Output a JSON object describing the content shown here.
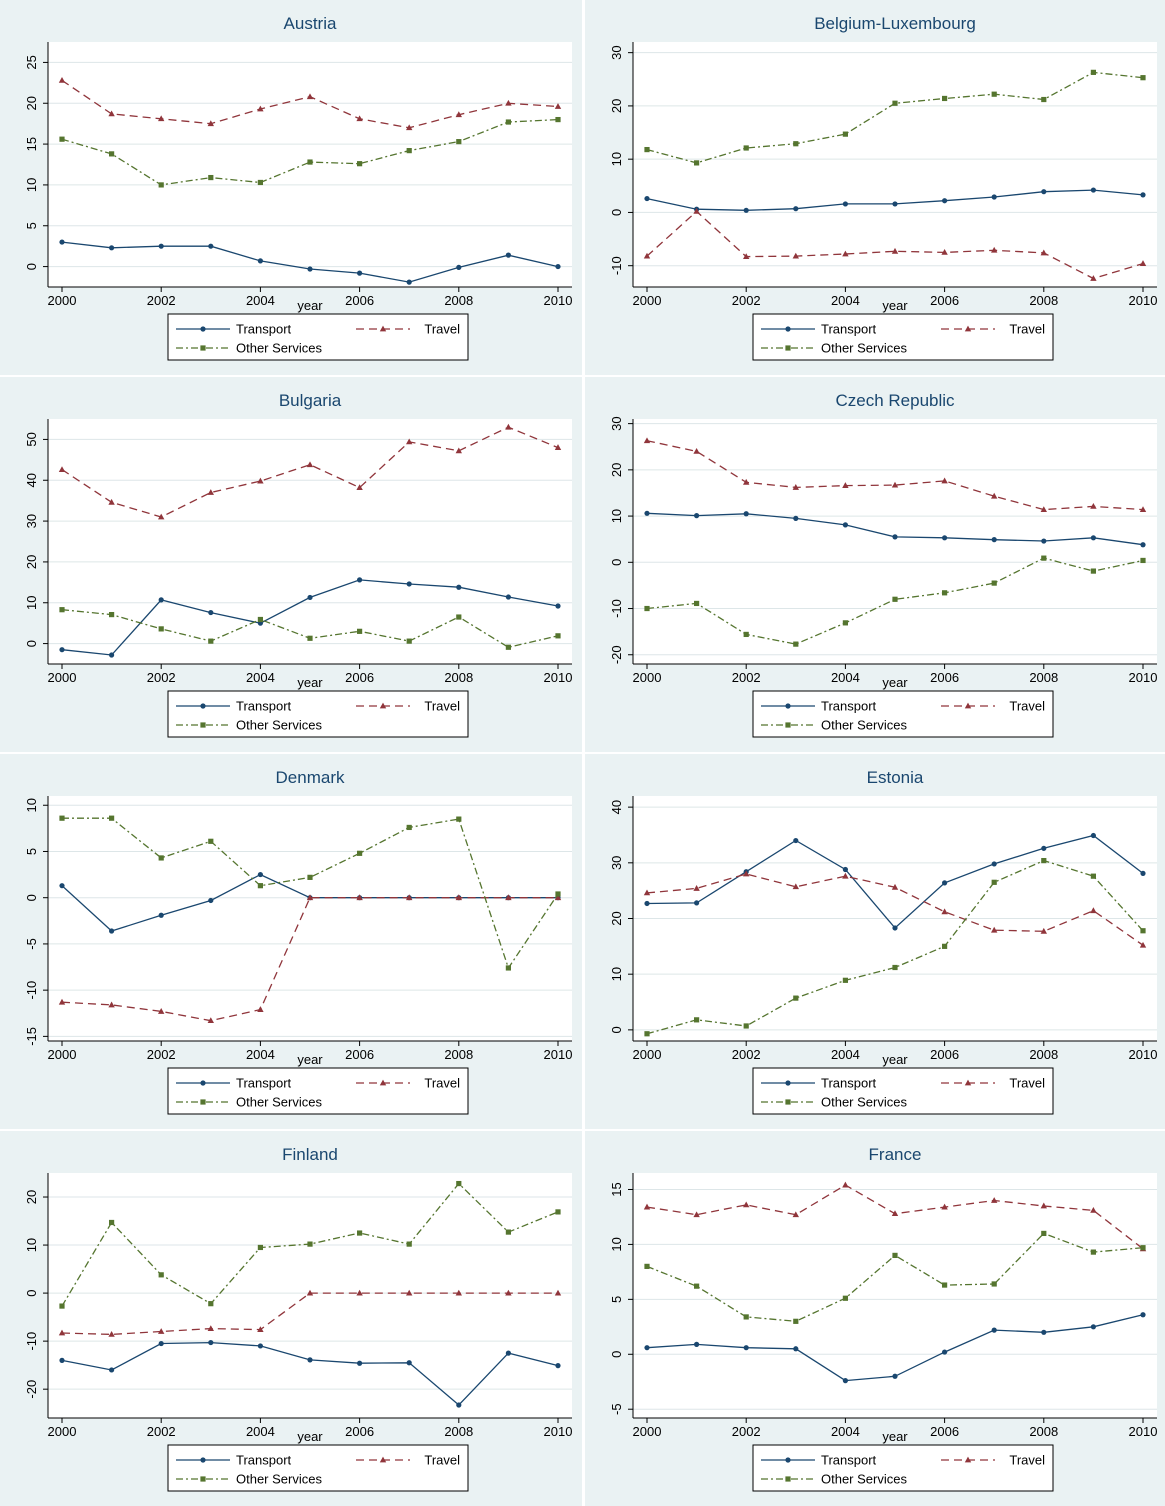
{
  "colors": {
    "panel_bg": "#eaf2f3",
    "plot_bg": "#ffffff",
    "title": "#1a476f",
    "transport": "#1a476f",
    "travel": "#90353b",
    "other_services": "#55752f",
    "grid": "#dde6e8",
    "axis": "#000000"
  },
  "chart_data": [
    {
      "type": "line",
      "title": "Austria",
      "xlabel": "year",
      "ylabel": "",
      "x": [
        2000,
        2001,
        2002,
        2003,
        2004,
        2005,
        2006,
        2007,
        2008,
        2009,
        2010
      ],
      "xticks": [
        "2000",
        "2002",
        "2004",
        "2006",
        "2008",
        "2010"
      ],
      "yticks": [
        0,
        5,
        10,
        15,
        20,
        25
      ],
      "ylim": [
        -2.5,
        27.5
      ],
      "grid": true,
      "legend_position": "bottom",
      "series": [
        {
          "name": "Transport",
          "style": "solid",
          "marker": "circle",
          "values": [
            3.0,
            2.3,
            2.5,
            2.5,
            0.7,
            -0.3,
            -0.8,
            -1.9,
            -0.1,
            1.4,
            0.0
          ]
        },
        {
          "name": "Travel",
          "style": "dash",
          "marker": "triangle",
          "values": [
            22.8,
            18.7,
            18.1,
            17.5,
            19.3,
            20.8,
            18.1,
            17.0,
            18.6,
            20.0,
            19.6
          ]
        },
        {
          "name": "Other Services",
          "style": "dashdot",
          "marker": "square",
          "values": [
            15.6,
            13.8,
            10.0,
            10.9,
            10.3,
            12.8,
            12.6,
            14.2,
            15.3,
            17.7,
            18.0
          ]
        }
      ]
    },
    {
      "type": "line",
      "title": "Belgium-Luxembourg",
      "xlabel": "year",
      "ylabel": "",
      "x": [
        2000,
        2001,
        2002,
        2003,
        2004,
        2005,
        2006,
        2007,
        2008,
        2009,
        2010
      ],
      "xticks": [
        "2000",
        "2002",
        "2004",
        "2006",
        "2008",
        "2010"
      ],
      "yticks": [
        -10,
        0,
        10,
        20,
        30
      ],
      "ylim": [
        -14,
        32
      ],
      "grid": true,
      "legend_position": "bottom",
      "series": [
        {
          "name": "Transport",
          "style": "solid",
          "marker": "circle",
          "values": [
            2.6,
            0.6,
            0.4,
            0.7,
            1.6,
            1.6,
            2.2,
            2.9,
            3.9,
            4.2,
            3.3
          ]
        },
        {
          "name": "Travel",
          "style": "dash",
          "marker": "triangle",
          "values": [
            -8.2,
            0.2,
            -8.3,
            -8.2,
            -7.8,
            -7.3,
            -7.5,
            -7.1,
            -7.6,
            -12.4,
            -9.6
          ]
        },
        {
          "name": "Other Services",
          "style": "dashdot",
          "marker": "square",
          "values": [
            11.8,
            9.3,
            12.1,
            12.9,
            14.7,
            20.5,
            21.4,
            22.2,
            21.2,
            26.3,
            25.3
          ]
        }
      ]
    },
    {
      "type": "line",
      "title": "Bulgaria",
      "xlabel": "year",
      "ylabel": "",
      "x": [
        2000,
        2001,
        2002,
        2003,
        2004,
        2005,
        2006,
        2007,
        2008,
        2009,
        2010
      ],
      "xticks": [
        "2000",
        "2002",
        "2004",
        "2006",
        "2008",
        "2010"
      ],
      "yticks": [
        0,
        10,
        20,
        30,
        40,
        50
      ],
      "ylim": [
        -5,
        55
      ],
      "grid": true,
      "legend_position": "bottom",
      "series": [
        {
          "name": "Transport",
          "style": "solid",
          "marker": "circle",
          "values": [
            -1.5,
            -2.8,
            10.7,
            7.6,
            5.0,
            11.3,
            15.6,
            14.6,
            13.8,
            11.4,
            9.2
          ]
        },
        {
          "name": "Travel",
          "style": "dash",
          "marker": "triangle",
          "values": [
            42.6,
            34.6,
            31.0,
            37.0,
            39.8,
            43.8,
            38.2,
            49.4,
            47.2,
            53.0,
            48.0
          ]
        },
        {
          "name": "Other Services",
          "style": "dashdot",
          "marker": "square",
          "values": [
            8.3,
            7.1,
            3.6,
            0.6,
            5.9,
            1.3,
            3.0,
            0.6,
            6.5,
            -0.9,
            1.9
          ]
        }
      ]
    },
    {
      "type": "line",
      "title": "Czech Republic",
      "xlabel": "year",
      "ylabel": "",
      "x": [
        2000,
        2001,
        2002,
        2003,
        2004,
        2005,
        2006,
        2007,
        2008,
        2009,
        2010
      ],
      "xticks": [
        "2000",
        "2002",
        "2004",
        "2006",
        "2008",
        "2010"
      ],
      "yticks": [
        -20,
        -10,
        0,
        10,
        20,
        30
      ],
      "ylim": [
        -22,
        31
      ],
      "grid": true,
      "legend_position": "bottom",
      "series": [
        {
          "name": "Transport",
          "style": "solid",
          "marker": "circle",
          "values": [
            10.6,
            10.1,
            10.5,
            9.5,
            8.1,
            5.5,
            5.3,
            4.9,
            4.6,
            5.3,
            3.8
          ]
        },
        {
          "name": "Travel",
          "style": "dash",
          "marker": "triangle",
          "values": [
            26.3,
            24.0,
            17.3,
            16.2,
            16.6,
            16.7,
            17.6,
            14.3,
            11.4,
            12.1,
            11.4
          ]
        },
        {
          "name": "Other Services",
          "style": "dashdot",
          "marker": "square",
          "values": [
            -10.0,
            -8.9,
            -15.6,
            -17.7,
            -13.1,
            -8.0,
            -6.6,
            -4.5,
            0.9,
            -1.9,
            0.4
          ]
        }
      ]
    },
    {
      "type": "line",
      "title": "Denmark",
      "xlabel": "year",
      "ylabel": "",
      "x": [
        2000,
        2001,
        2002,
        2003,
        2004,
        2005,
        2006,
        2007,
        2008,
        2009,
        2010
      ],
      "xticks": [
        "2000",
        "2002",
        "2004",
        "2006",
        "2008",
        "2010"
      ],
      "yticks": [
        -15,
        -10,
        -5,
        0,
        5,
        10
      ],
      "ylim": [
        -15.5,
        11
      ],
      "grid": true,
      "legend_position": "bottom",
      "series": [
        {
          "name": "Transport",
          "style": "solid",
          "marker": "circle",
          "values": [
            1.3,
            -3.6,
            -1.9,
            -0.3,
            2.5,
            0.0,
            0.0,
            0.0,
            0.0,
            0.0,
            0.0
          ]
        },
        {
          "name": "Travel",
          "style": "dash",
          "marker": "triangle",
          "values": [
            -11.3,
            -11.6,
            -12.3,
            -13.3,
            -12.1,
            0.0,
            0.0,
            0.0,
            0.0,
            0.0,
            0.0
          ]
        },
        {
          "name": "Other Services",
          "style": "dashdot",
          "marker": "square",
          "values": [
            8.6,
            8.6,
            4.3,
            6.1,
            1.3,
            2.2,
            4.8,
            7.6,
            8.5,
            -7.6,
            0.4
          ]
        }
      ]
    },
    {
      "type": "line",
      "title": "Estonia",
      "xlabel": "year",
      "ylabel": "",
      "x": [
        2000,
        2001,
        2002,
        2003,
        2004,
        2005,
        2006,
        2007,
        2008,
        2009,
        2010
      ],
      "xticks": [
        "2000",
        "2002",
        "2004",
        "2006",
        "2008",
        "2010"
      ],
      "yticks": [
        0,
        10,
        20,
        30,
        40
      ],
      "ylim": [
        -2,
        42
      ],
      "grid": true,
      "legend_position": "bottom",
      "series": [
        {
          "name": "Transport",
          "style": "solid",
          "marker": "circle",
          "values": [
            22.7,
            22.8,
            28.4,
            34.0,
            28.8,
            18.3,
            26.4,
            29.8,
            32.6,
            34.9,
            28.1
          ]
        },
        {
          "name": "Travel",
          "style": "dash",
          "marker": "triangle",
          "values": [
            24.6,
            25.4,
            28.0,
            25.7,
            27.6,
            25.6,
            21.2,
            17.9,
            17.7,
            21.4,
            15.2
          ]
        },
        {
          "name": "Other Services",
          "style": "dashdot",
          "marker": "square",
          "values": [
            -0.7,
            1.8,
            0.7,
            5.7,
            8.9,
            11.2,
            15.0,
            26.5,
            30.4,
            27.6,
            17.8
          ]
        }
      ]
    },
    {
      "type": "line",
      "title": "Finland",
      "xlabel": "year",
      "ylabel": "",
      "x": [
        2000,
        2001,
        2002,
        2003,
        2004,
        2005,
        2006,
        2007,
        2008,
        2009,
        2010
      ],
      "xticks": [
        "2000",
        "2002",
        "2004",
        "2006",
        "2008",
        "2010"
      ],
      "yticks": [
        -20,
        -10,
        0,
        10,
        20
      ],
      "ylim": [
        -26,
        25
      ],
      "grid": true,
      "legend_position": "bottom",
      "series": [
        {
          "name": "Transport",
          "style": "solid",
          "marker": "circle",
          "values": [
            -14.0,
            -16.0,
            -10.5,
            -10.3,
            -11.0,
            -13.9,
            -14.6,
            -14.5,
            -23.3,
            -12.5,
            -15.1
          ]
        },
        {
          "name": "Travel",
          "style": "dash",
          "marker": "triangle",
          "values": [
            -8.3,
            -8.6,
            -8.0,
            -7.4,
            -7.6,
            0.0,
            0.0,
            0.0,
            0.0,
            0.0,
            0.0
          ]
        },
        {
          "name": "Other Services",
          "style": "dashdot",
          "marker": "square",
          "values": [
            -2.7,
            14.7,
            3.8,
            -2.2,
            9.5,
            10.2,
            12.5,
            10.2,
            22.8,
            12.7,
            16.9
          ]
        }
      ]
    },
    {
      "type": "line",
      "title": "France",
      "xlabel": "year",
      "ylabel": "",
      "x": [
        2000,
        2001,
        2002,
        2003,
        2004,
        2005,
        2006,
        2007,
        2008,
        2009,
        2010
      ],
      "xticks": [
        "2000",
        "2002",
        "2004",
        "2006",
        "2008",
        "2010"
      ],
      "yticks": [
        -5,
        0,
        5,
        10,
        15
      ],
      "ylim": [
        -5.8,
        16.5
      ],
      "grid": true,
      "legend_position": "bottom",
      "series": [
        {
          "name": "Transport",
          "style": "solid",
          "marker": "circle",
          "values": [
            0.6,
            0.9,
            0.6,
            0.5,
            -2.4,
            -2.0,
            0.2,
            2.2,
            2.0,
            2.5,
            3.6
          ]
        },
        {
          "name": "Travel",
          "style": "dash",
          "marker": "triangle",
          "values": [
            13.4,
            12.7,
            13.6,
            12.7,
            15.4,
            12.8,
            13.4,
            14.0,
            13.5,
            13.1,
            9.6
          ]
        },
        {
          "name": "Other Services",
          "style": "dashdot",
          "marker": "square",
          "values": [
            8.0,
            6.2,
            3.4,
            3.0,
            5.1,
            9.0,
            6.3,
            6.4,
            11.0,
            9.3,
            9.7
          ]
        }
      ]
    }
  ]
}
